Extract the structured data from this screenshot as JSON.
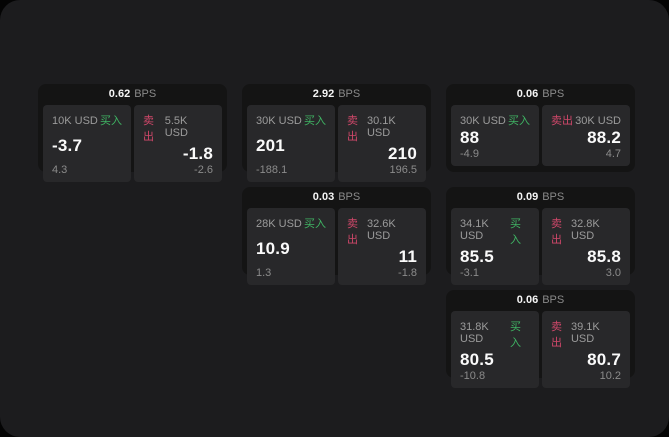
{
  "labels": {
    "bps_unit": "BPS",
    "buy": "买入",
    "sell": "卖出"
  },
  "colors": {
    "background": "#1c1c1e",
    "card": "#141414",
    "panel": "#28282a",
    "buy_green": "#3fb463",
    "sell_rose": "#d0476a",
    "primary_text": "#fafafa",
    "secondary_text": "#9b9b9b"
  },
  "cards": [
    {
      "row": 1,
      "col": 1,
      "bps": "0.62",
      "buy": {
        "amount": "10K USD",
        "value": "-3.7",
        "delta": "4.3"
      },
      "sell": {
        "amount": "5.5K USD",
        "value": "-1.8",
        "delta": "-2.6"
      }
    },
    {
      "row": 1,
      "col": 2,
      "bps": "2.92",
      "buy": {
        "amount": "30K USD",
        "value": "201",
        "delta": "-188.1"
      },
      "sell": {
        "amount": "30.1K USD",
        "value": "210",
        "delta": "196.5"
      }
    },
    {
      "row": 1,
      "col": 3,
      "bps": "0.06",
      "buy": {
        "amount": "30K USD",
        "value": "88",
        "delta": "-4.9"
      },
      "sell": {
        "amount": "30K USD",
        "value": "88.2",
        "delta": "4.7"
      }
    },
    {
      "row": 2,
      "col": 2,
      "bps": "0.03",
      "buy": {
        "amount": "28K USD",
        "value": "10.9",
        "delta": "1.3"
      },
      "sell": {
        "amount": "32.6K USD",
        "value": "11",
        "delta": "-1.8"
      }
    },
    {
      "row": 2,
      "col": 3,
      "bps": "0.09",
      "buy": {
        "amount": "34.1K USD",
        "value": "85.5",
        "delta": "-3.1"
      },
      "sell": {
        "amount": "32.8K USD",
        "value": "85.8",
        "delta": "3.0"
      }
    },
    {
      "row": 3,
      "col": 3,
      "bps": "0.06",
      "buy": {
        "amount": "31.8K USD",
        "value": "80.5",
        "delta": "-10.8"
      },
      "sell": {
        "amount": "39.1K USD",
        "value": "80.7",
        "delta": "10.2"
      }
    }
  ]
}
